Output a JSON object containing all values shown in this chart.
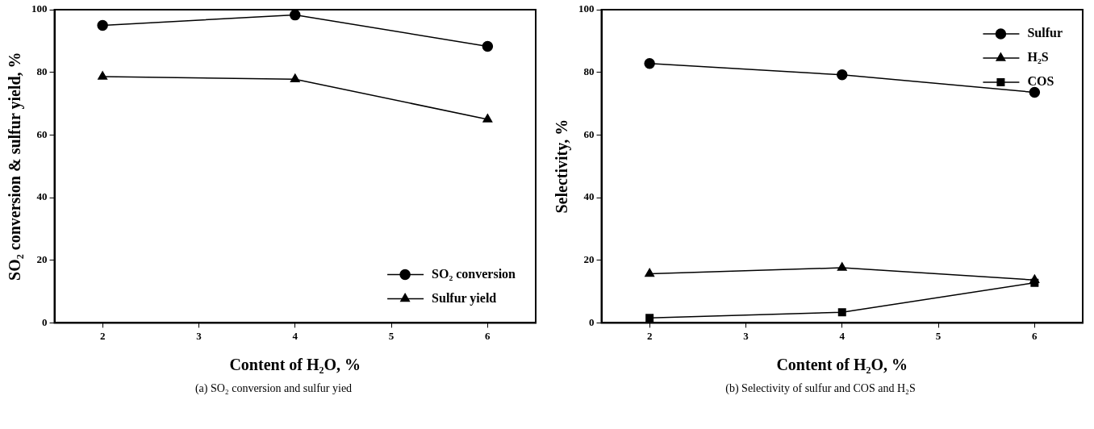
{
  "chart_data": [
    {
      "type": "line",
      "xlabel": "Content of H₂O, %",
      "ylabel": "SO₂ conversion & sulfur yield, %",
      "x": [
        2,
        4,
        6
      ],
      "xlim": [
        1.5,
        6.5
      ],
      "xticks": [
        2,
        3,
        4,
        5,
        6
      ],
      "ylim": [
        0,
        100
      ],
      "yticks": [
        0,
        20,
        40,
        60,
        80,
        100
      ],
      "grid": false,
      "legend": "bottom right",
      "line_style": "solid",
      "annotations": [
        "(a) SO₂ conversion and sulfur yied"
      ],
      "series": [
        {
          "name": "SO₂ conversion",
          "color": "#000000",
          "marker": "circle",
          "values": [
            95,
            98.3,
            88.3
          ]
        },
        {
          "name": "Sulfur yield",
          "color": "#000000",
          "marker": "triangle",
          "values": [
            78.6,
            77.8,
            65
          ]
        }
      ]
    },
    {
      "type": "line",
      "xlabel": "Content of H₂O, %",
      "ylabel": "Selectivity, %",
      "x": [
        2,
        4,
        6
      ],
      "xlim": [
        1.5,
        6.5
      ],
      "xticks": [
        2,
        3,
        4,
        5,
        6
      ],
      "ylim": [
        0,
        100
      ],
      "yticks": [
        0,
        20,
        40,
        60,
        80,
        100
      ],
      "grid": false,
      "legend": "top right",
      "line_style": "solid",
      "annotations": [
        "(b) Selectivity of sulfur and COS and H₂S"
      ],
      "series": [
        {
          "name": "Sulfur",
          "color": "#000000",
          "marker": "circle",
          "values": [
            82.8,
            79.2,
            73.6
          ]
        },
        {
          "name": "H₂S",
          "color": "#000000",
          "marker": "triangle",
          "values": [
            15.7,
            17.6,
            13.7
          ]
        },
        {
          "name": "COS",
          "color": "#000000",
          "marker": "square",
          "values": [
            1.6,
            3.4,
            12.8
          ]
        }
      ]
    }
  ]
}
